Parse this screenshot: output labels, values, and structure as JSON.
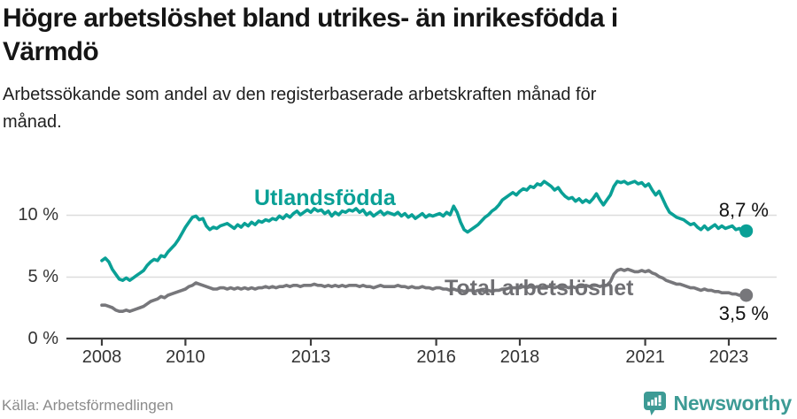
{
  "header": {
    "title_line1": "Högre arbetslöshet bland utrikes- än inrikesfödda i",
    "title_line2": "Värmdö",
    "subtitle_line1": "Arbetssökande som andel av den registerbaserade arbetskraften månad för",
    "subtitle_line2": "månad."
  },
  "footer": {
    "source": "Källa: Arbetsförmedlingen",
    "logo_text": "Newsworthy"
  },
  "colors": {
    "accent_teal": "#0aa096",
    "series_gray": "#77777b",
    "gridline": "#dcdcdc",
    "axis": "#3d3d3d",
    "logo_teal": "#3d9b95"
  },
  "chart_data": {
    "type": "line",
    "title": "Högre arbetslöshet bland utrikes- än inrikesfödda i Värmdö",
    "subtitle": "Arbetssökande som andel av den registerbaserade arbetskraften månad för månad.",
    "x_start": "2008-01",
    "x_end": "2023-06",
    "frequency": "monthly",
    "grid": "horizontal",
    "legend_position": "inline-labels",
    "ylim": [
      0,
      13.5
    ],
    "y_ticks": [
      {
        "value": 0,
        "label": "0 %"
      },
      {
        "value": 5,
        "label": "5 %"
      },
      {
        "value": 10,
        "label": "10 %"
      }
    ],
    "x_ticks": [
      {
        "year": 2008,
        "label": "2008"
      },
      {
        "year": 2010,
        "label": "2010"
      },
      {
        "year": 2013,
        "label": "2013"
      },
      {
        "year": 2016,
        "label": "2016"
      },
      {
        "year": 2018,
        "label": "2018"
      },
      {
        "year": 2021,
        "label": "2021"
      },
      {
        "year": 2023,
        "label": "2023"
      }
    ],
    "series": [
      {
        "name": "Utlandsfödda",
        "color": "#0aa096",
        "end_label": "8,7 %",
        "end_value": 8.7,
        "values": [
          6.3,
          6.5,
          6.2,
          5.6,
          5.2,
          4.8,
          4.7,
          4.9,
          4.7,
          4.9,
          5.1,
          5.3,
          5.5,
          5.9,
          6.2,
          6.4,
          6.3,
          6.7,
          6.6,
          7.0,
          7.3,
          7.6,
          8.0,
          8.5,
          9.0,
          9.4,
          9.8,
          9.9,
          9.6,
          9.7,
          9.1,
          8.8,
          9.0,
          8.9,
          9.1,
          9.2,
          9.3,
          9.1,
          8.9,
          9.2,
          9.0,
          9.3,
          9.1,
          9.4,
          9.2,
          9.5,
          9.4,
          9.6,
          9.5,
          9.7,
          9.6,
          9.9,
          9.7,
          10.0,
          9.8,
          10.1,
          10.3,
          10.0,
          10.2,
          10.4,
          10.2,
          10.5,
          10.3,
          10.4,
          10.1,
          10.3,
          9.9,
          10.2,
          10.0,
          10.3,
          10.2,
          10.4,
          10.3,
          10.5,
          10.2,
          10.4,
          10.0,
          10.2,
          9.9,
          10.1,
          10.3,
          10.0,
          10.2,
          10.1,
          10.0,
          10.2,
          9.9,
          10.1,
          9.8,
          10.0,
          9.7,
          9.9,
          10.1,
          9.8,
          10.0,
          9.9,
          10.0,
          10.1,
          9.9,
          10.2,
          10.0,
          10.7,
          10.2,
          9.4,
          8.8,
          8.6,
          8.8,
          9.0,
          9.2,
          9.5,
          9.8,
          10.0,
          10.3,
          10.5,
          10.8,
          11.2,
          11.4,
          11.6,
          11.8,
          11.6,
          11.9,
          12.1,
          12.0,
          12.3,
          12.2,
          12.5,
          12.4,
          12.7,
          12.5,
          12.3,
          12.0,
          12.2,
          11.8,
          11.5,
          11.3,
          11.4,
          11.1,
          11.3,
          11.0,
          11.2,
          11.0,
          11.3,
          11.7,
          11.2,
          10.8,
          11.2,
          11.6,
          12.3,
          12.7,
          12.6,
          12.7,
          12.5,
          12.6,
          12.7,
          12.5,
          12.6,
          12.3,
          12.5,
          12.0,
          11.6,
          11.9,
          11.3,
          10.7,
          10.2,
          10.0,
          9.8,
          9.7,
          9.6,
          9.4,
          9.2,
          9.3,
          9.0,
          8.8,
          9.1,
          8.8,
          9.0,
          9.2,
          8.9,
          9.1,
          8.9,
          9.0,
          9.1,
          8.8,
          8.9,
          8.6,
          8.7
        ]
      },
      {
        "name": "Total arbetslöshet",
        "color": "#77777b",
        "end_label": "3,5 %",
        "end_value": 3.5,
        "values": [
          2.7,
          2.7,
          2.6,
          2.5,
          2.3,
          2.2,
          2.2,
          2.3,
          2.2,
          2.3,
          2.4,
          2.5,
          2.6,
          2.8,
          3.0,
          3.1,
          3.2,
          3.4,
          3.3,
          3.5,
          3.6,
          3.7,
          3.8,
          3.9,
          4.0,
          4.2,
          4.3,
          4.5,
          4.4,
          4.3,
          4.2,
          4.1,
          4.0,
          4.0,
          4.1,
          4.1,
          4.0,
          4.1,
          4.0,
          4.1,
          4.0,
          4.1,
          4.0,
          4.1,
          4.0,
          4.1,
          4.1,
          4.2,
          4.1,
          4.2,
          4.1,
          4.2,
          4.2,
          4.3,
          4.2,
          4.3,
          4.3,
          4.2,
          4.3,
          4.3,
          4.3,
          4.4,
          4.3,
          4.3,
          4.2,
          4.3,
          4.2,
          4.3,
          4.2,
          4.3,
          4.2,
          4.3,
          4.3,
          4.3,
          4.2,
          4.3,
          4.2,
          4.2,
          4.1,
          4.2,
          4.3,
          4.2,
          4.2,
          4.2,
          4.2,
          4.3,
          4.2,
          4.2,
          4.1,
          4.2,
          4.1,
          4.1,
          4.2,
          4.1,
          4.1,
          4.0,
          4.1,
          4.1,
          4.0,
          4.0,
          3.9,
          4.0,
          3.9,
          3.9,
          3.8,
          3.9,
          3.9,
          3.8,
          3.9,
          3.9,
          3.8,
          3.9,
          3.8,
          3.9,
          3.9,
          4.0,
          4.0,
          4.1,
          4.1,
          4.1,
          4.1,
          4.2,
          4.1,
          4.2,
          4.1,
          4.2,
          4.1,
          4.2,
          4.2,
          4.2,
          4.1,
          4.2,
          4.2,
          4.2,
          4.1,
          4.2,
          4.1,
          4.2,
          4.2,
          4.3,
          4.2,
          4.3,
          4.3,
          4.2,
          4.3,
          4.3,
          4.6,
          5.2,
          5.5,
          5.6,
          5.5,
          5.6,
          5.5,
          5.4,
          5.4,
          5.5,
          5.4,
          5.5,
          5.3,
          5.2,
          5.0,
          4.9,
          4.7,
          4.6,
          4.5,
          4.4,
          4.4,
          4.3,
          4.2,
          4.1,
          4.1,
          4.0,
          3.9,
          4.0,
          3.9,
          3.9,
          3.8,
          3.8,
          3.7,
          3.7,
          3.7,
          3.6,
          3.6,
          3.5,
          3.5,
          3.5
        ]
      }
    ]
  }
}
